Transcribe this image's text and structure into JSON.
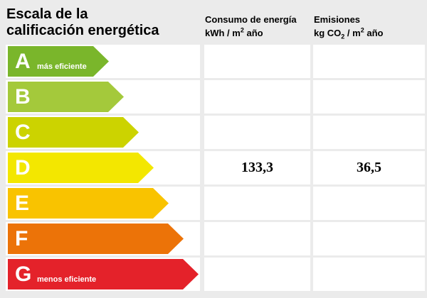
{
  "title": {
    "line1": "Escala de la",
    "line2": "calificación energética"
  },
  "columns": {
    "energy": {
      "line1": "Consumo de energía",
      "line2_pre": "kWh / m",
      "line2_sup": "2",
      "line2_post": " año"
    },
    "emissions": {
      "line1": "Emisiones",
      "line2_pre": "kg CO",
      "line2_sub": "2",
      "line2_mid": " / m",
      "line2_sup": "2",
      "line2_post": " año"
    }
  },
  "rating": {
    "bands": [
      {
        "letter": "A",
        "label": "más eficiente",
        "color": "#7ab62b",
        "energy": "",
        "emissions": ""
      },
      {
        "letter": "B",
        "label": "",
        "color": "#a4c93b",
        "energy": "",
        "emissions": ""
      },
      {
        "letter": "C",
        "label": "",
        "color": "#ccd300",
        "energy": "",
        "emissions": ""
      },
      {
        "letter": "D",
        "label": "",
        "color": "#f3e700",
        "energy": "133,3",
        "emissions": "36,5"
      },
      {
        "letter": "E",
        "label": "",
        "color": "#f9c300",
        "energy": "",
        "emissions": ""
      },
      {
        "letter": "F",
        "label": "",
        "color": "#ec7308",
        "energy": "",
        "emissions": ""
      },
      {
        "letter": "G",
        "label": "menos eficiente",
        "color": "#e4222a",
        "energy": "",
        "emissions": ""
      }
    ]
  }
}
